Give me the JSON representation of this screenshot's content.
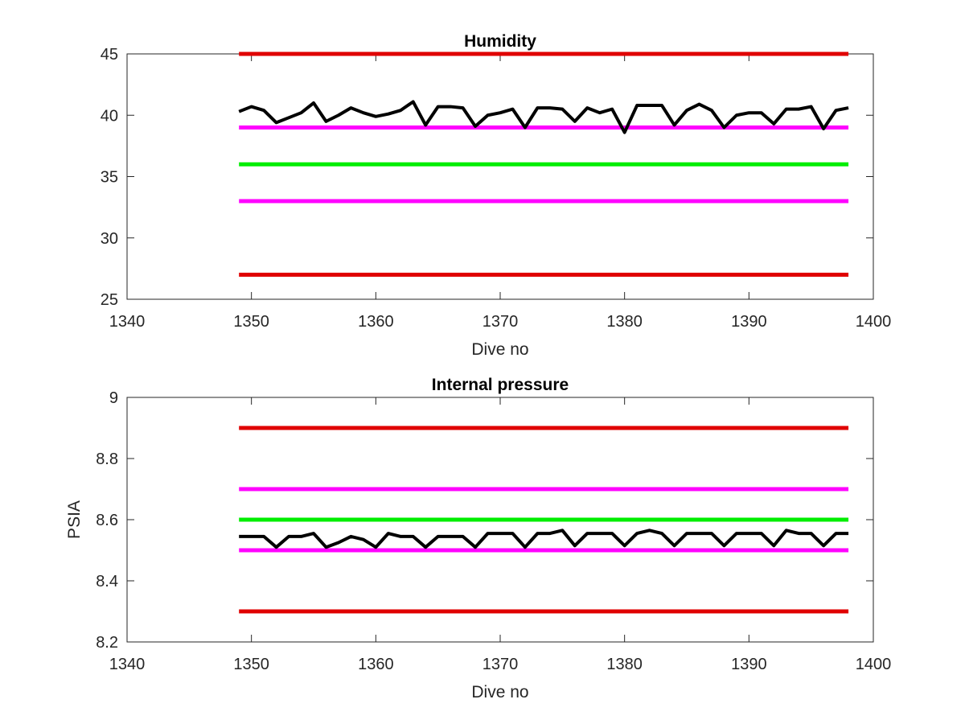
{
  "chart_data": [
    {
      "type": "line",
      "title": "Humidity",
      "xlabel": "Dive no",
      "ylabel": "",
      "xlim": [
        1340,
        1400
      ],
      "ylim": [
        25,
        45
      ],
      "xticks": [
        1340,
        1350,
        1360,
        1370,
        1380,
        1390,
        1400
      ],
      "yticks": [
        25,
        30,
        35,
        40,
        45
      ],
      "xtick_labels": [
        "1340",
        "1350",
        "1360",
        "1370",
        "1380",
        "1390",
        "1400"
      ],
      "ytick_labels": [
        "25",
        "30",
        "35",
        "40",
        "45"
      ],
      "grid": false,
      "series": [
        {
          "color": "#e00000",
          "x": [
            1349,
            1398
          ],
          "y": [
            45,
            45
          ]
        },
        {
          "color": "#ff00ff",
          "x": [
            1349,
            1398
          ],
          "y": [
            39,
            39
          ]
        },
        {
          "color": "#00ee00",
          "x": [
            1349,
            1398
          ],
          "y": [
            36,
            36
          ]
        },
        {
          "color": "#ff00ff",
          "x": [
            1349,
            1398
          ],
          "y": [
            33,
            33
          ]
        },
        {
          "color": "#e00000",
          "x": [
            1349,
            1398
          ],
          "y": [
            27,
            27
          ]
        },
        {
          "color": "#000000",
          "x": [
            1349,
            1350,
            1351,
            1352,
            1353,
            1354,
            1355,
            1356,
            1357,
            1358,
            1359,
            1360,
            1361,
            1362,
            1363,
            1364,
            1365,
            1366,
            1367,
            1368,
            1369,
            1370,
            1371,
            1372,
            1373,
            1374,
            1375,
            1376,
            1377,
            1378,
            1379,
            1380,
            1381,
            1382,
            1383,
            1384,
            1385,
            1386,
            1387,
            1388,
            1389,
            1390,
            1391,
            1392,
            1393,
            1394,
            1395,
            1396,
            1397,
            1398
          ],
          "y": [
            40.3,
            40.7,
            40.4,
            39.4,
            39.8,
            40.2,
            41.0,
            39.5,
            40.0,
            40.6,
            40.2,
            39.9,
            40.1,
            40.4,
            41.1,
            39.2,
            40.7,
            40.7,
            40.6,
            39.1,
            40.0,
            40.2,
            40.5,
            39.0,
            40.6,
            40.6,
            40.5,
            39.5,
            40.6,
            40.2,
            40.5,
            38.6,
            40.8,
            40.8,
            40.8,
            39.2,
            40.4,
            40.9,
            40.4,
            39.0,
            40.0,
            40.2,
            40.2,
            39.3,
            40.5,
            40.5,
            40.7,
            38.9,
            40.4,
            40.6
          ]
        }
      ]
    },
    {
      "type": "line",
      "title": "Internal pressure",
      "xlabel": "Dive no",
      "ylabel": "PSIA",
      "xlim": [
        1340,
        1400
      ],
      "ylim": [
        8.2,
        9.0
      ],
      "xticks": [
        1340,
        1350,
        1360,
        1370,
        1380,
        1390,
        1400
      ],
      "yticks": [
        8.2,
        8.4,
        8.6,
        8.8,
        9.0
      ],
      "xtick_labels": [
        "1340",
        "1350",
        "1360",
        "1370",
        "1380",
        "1390",
        "1400"
      ],
      "ytick_labels": [
        "8.2",
        "8.4",
        "8.6",
        "8.8",
        "9"
      ],
      "grid": false,
      "series": [
        {
          "color": "#e00000",
          "x": [
            1349,
            1398
          ],
          "y": [
            8.9,
            8.9
          ]
        },
        {
          "color": "#ff00ff",
          "x": [
            1349,
            1398
          ],
          "y": [
            8.7,
            8.7
          ]
        },
        {
          "color": "#00ee00",
          "x": [
            1349,
            1398
          ],
          "y": [
            8.6,
            8.6
          ]
        },
        {
          "color": "#ff00ff",
          "x": [
            1349,
            1398
          ],
          "y": [
            8.5,
            8.5
          ]
        },
        {
          "color": "#e00000",
          "x": [
            1349,
            1398
          ],
          "y": [
            8.3,
            8.3
          ]
        },
        {
          "color": "#000000",
          "x": [
            1349,
            1350,
            1351,
            1352,
            1353,
            1354,
            1355,
            1356,
            1357,
            1358,
            1359,
            1360,
            1361,
            1362,
            1363,
            1364,
            1365,
            1366,
            1367,
            1368,
            1369,
            1370,
            1371,
            1372,
            1373,
            1374,
            1375,
            1376,
            1377,
            1378,
            1379,
            1380,
            1381,
            1382,
            1383,
            1384,
            1385,
            1386,
            1387,
            1388,
            1389,
            1390,
            1391,
            1392,
            1393,
            1394,
            1395,
            1396,
            1397,
            1398
          ],
          "y": [
            8.545,
            8.545,
            8.545,
            8.51,
            8.545,
            8.545,
            8.555,
            8.51,
            8.525,
            8.545,
            8.535,
            8.51,
            8.555,
            8.545,
            8.545,
            8.51,
            8.545,
            8.545,
            8.545,
            8.51,
            8.555,
            8.555,
            8.555,
            8.51,
            8.555,
            8.555,
            8.565,
            8.515,
            8.555,
            8.555,
            8.555,
            8.515,
            8.555,
            8.565,
            8.555,
            8.515,
            8.555,
            8.555,
            8.555,
            8.515,
            8.555,
            8.555,
            8.555,
            8.515,
            8.565,
            8.555,
            8.555,
            8.515,
            8.555,
            8.555
          ]
        }
      ]
    }
  ]
}
